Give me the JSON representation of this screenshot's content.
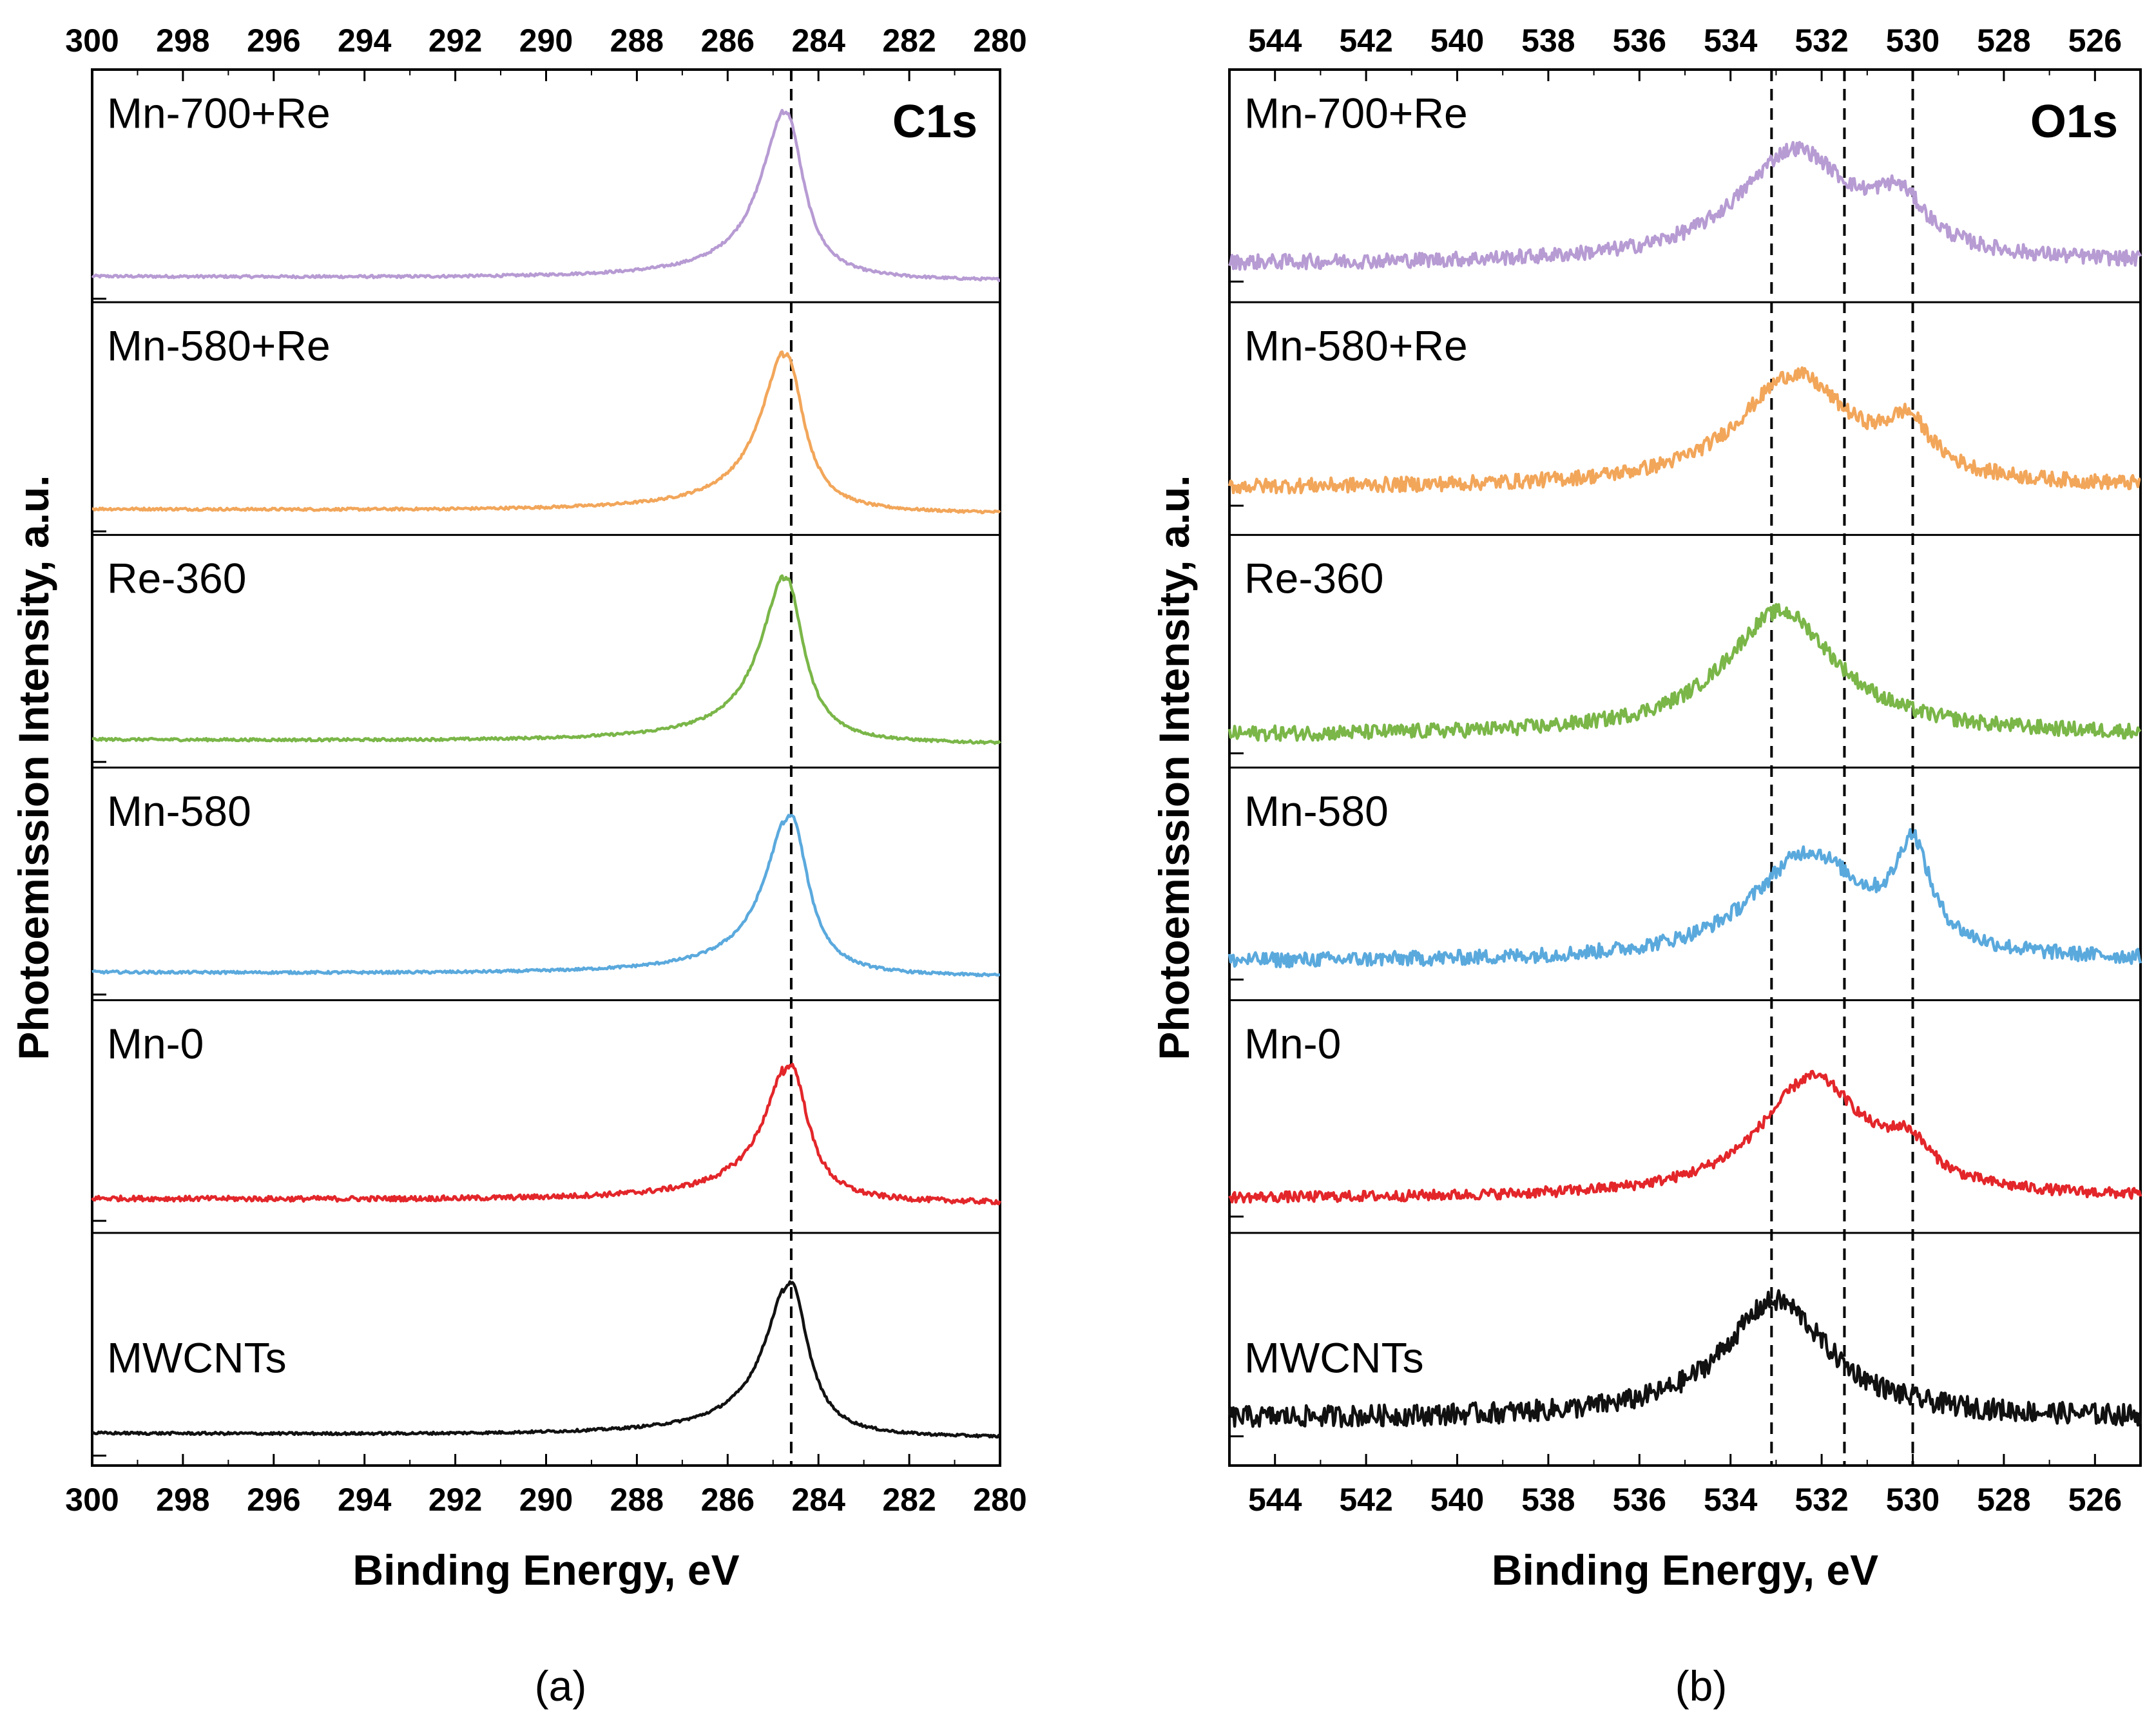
{
  "figure": {
    "panels": [
      {
        "letter": "a",
        "caption": "(a)",
        "region": "C1s",
        "y_axis_label": "Photoemission Intensity, a.u.",
        "x_axis_label": "Binding Energy, eV",
        "x_ticks": [
          "300",
          "298",
          "296",
          "294",
          "292",
          "290",
          "288",
          "286",
          "284",
          "282",
          "280"
        ]
      },
      {
        "letter": "b",
        "caption": "(b)",
        "region": "O1s",
        "y_axis_label": "Photoemission Intensity, a.u.",
        "x_axis_label": "Binding Energy, eV",
        "x_ticks": [
          "544",
          "542",
          "540",
          "538",
          "536",
          "534",
          "532",
          "530",
          "528",
          "526"
        ]
      }
    ]
  },
  "chart_data": [
    {
      "type": "line",
      "title": "C1s",
      "xlabel": "Binding Energy, eV",
      "ylabel": "Photoemission Intensity, a.u.",
      "xlim": [
        300,
        280
      ],
      "x_reversed": true,
      "x_ticks": [
        300,
        298,
        296,
        294,
        292,
        290,
        288,
        286,
        284,
        282,
        280
      ],
      "reference_lines": [
        284.6
      ],
      "stacked": true,
      "series": [
        {
          "name": "Mn-700+Re",
          "color": "#b79bd3",
          "baseline": 0.1,
          "peaks": [
            {
              "center": 284.7,
              "height": 0.78,
              "width": 0.45
            }
          ],
          "shoulder": 0.05,
          "noise": 0.006
        },
        {
          "name": "Mn-580+Re",
          "color": "#f2a65a",
          "baseline": 0.1,
          "peaks": [
            {
              "center": 284.7,
              "height": 0.74,
              "width": 0.45
            }
          ],
          "shoulder": 0.06,
          "noise": 0.006
        },
        {
          "name": "Re-360",
          "color": "#7ab648",
          "baseline": 0.11,
          "peaks": [
            {
              "center": 284.7,
              "height": 0.77,
              "width": 0.45
            }
          ],
          "shoulder": 0.06,
          "noise": 0.006
        },
        {
          "name": "Mn-580",
          "color": "#5aa9dd",
          "baseline": 0.11,
          "peaks": [
            {
              "center": 284.6,
              "height": 0.75,
              "width": 0.45
            }
          ],
          "shoulder": 0.06,
          "noise": 0.006
        },
        {
          "name": "Mn-0",
          "color": "#e3262a",
          "baseline": 0.14,
          "peaks": [
            {
              "center": 284.6,
              "height": 0.64,
              "width": 0.45
            }
          ],
          "shoulder": 0.07,
          "noise": 0.012
        },
        {
          "name": "MWCNTs",
          "color": "#111111",
          "baseline": 0.13,
          "peaks": [
            {
              "center": 284.6,
              "height": 0.72,
              "width": 0.45
            }
          ],
          "shoulder": 0.06,
          "noise": 0.006
        }
      ]
    },
    {
      "type": "line",
      "title": "O1s",
      "xlabel": "Binding Energy, eV",
      "ylabel": "Photoemission Intensity, a.u.",
      "xlim": [
        545,
        525
      ],
      "x_reversed": true,
      "x_ticks": [
        544,
        542,
        540,
        538,
        536,
        534,
        532,
        530,
        528,
        526
      ],
      "reference_lines": [
        533.1,
        531.5,
        530.0
      ],
      "stacked": true,
      "series": [
        {
          "name": "Mn-700+Re",
          "color": "#b79bd3",
          "baseline": 0.18,
          "peaks": [
            {
              "center": 532.6,
              "height": 0.52,
              "width": 1.5
            },
            {
              "center": 530.3,
              "height": 0.22,
              "width": 0.7
            }
          ],
          "noise": 0.035
        },
        {
          "name": "Mn-580+Re",
          "color": "#f2a65a",
          "baseline": 0.22,
          "peaks": [
            {
              "center": 532.6,
              "height": 0.52,
              "width": 1.5
            },
            {
              "center": 530.1,
              "height": 0.22,
              "width": 0.6
            }
          ],
          "noise": 0.035
        },
        {
          "name": "Re-360",
          "color": "#7ab648",
          "baseline": 0.15,
          "peaks": [
            {
              "center": 532.9,
              "height": 0.58,
              "width": 1.5
            }
          ],
          "noise": 0.035
        },
        {
          "name": "Mn-580",
          "color": "#5aa9dd",
          "baseline": 0.18,
          "peaks": [
            {
              "center": 532.3,
              "height": 0.5,
              "width": 1.5
            },
            {
              "center": 530.0,
              "height": 0.45,
              "width": 0.45
            }
          ],
          "noise": 0.035
        },
        {
          "name": "Mn-0",
          "color": "#e3262a",
          "baseline": 0.16,
          "peaks": [
            {
              "center": 532.2,
              "height": 0.56,
              "width": 1.4
            },
            {
              "center": 530.1,
              "height": 0.16,
              "width": 0.6
            }
          ],
          "noise": 0.025
        },
        {
          "name": "MWCNTs",
          "color": "#111111",
          "baseline": 0.22,
          "peaks": [
            {
              "center": 533.0,
              "height": 0.55,
              "width": 1.4
            }
          ],
          "noise": 0.05
        }
      ]
    }
  ]
}
